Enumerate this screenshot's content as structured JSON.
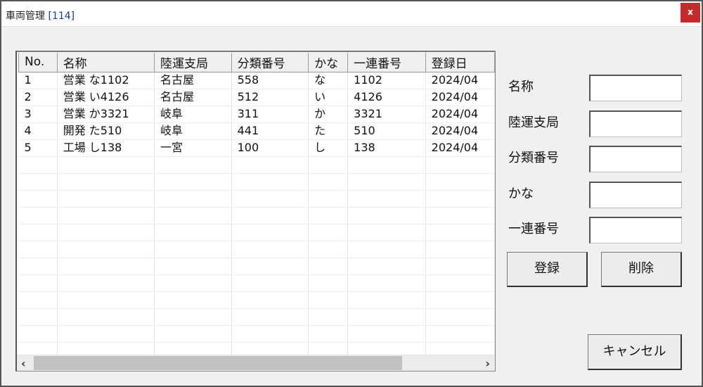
{
  "window": {
    "title": "車両管理",
    "title_suffix": "[114]",
    "close_label": "x"
  },
  "list": {
    "columns": [
      "No.",
      "名称",
      "陸運支局",
      "分類番号",
      "かな",
      "一連番号",
      "登録日"
    ],
    "rows": [
      [
        "1",
        "営業 な1102",
        "名古屋",
        "558",
        "な",
        "1102",
        "2024/04"
      ],
      [
        "2",
        "営業 い4126",
        "名古屋",
        "512",
        "い",
        "4126",
        "2024/04"
      ],
      [
        "3",
        "営業 か3321",
        "岐阜",
        "311",
        "か",
        "3321",
        "2024/04"
      ],
      [
        "4",
        "開発 た510",
        "岐阜",
        "441",
        "た",
        "510",
        "2024/04"
      ],
      [
        "5",
        "工場 し138",
        "一宮",
        "100",
        "し",
        "138",
        "2024/04"
      ]
    ],
    "scroll_left": "‹",
    "scroll_right": "›"
  },
  "form": {
    "fields": [
      {
        "label": "名称",
        "value": ""
      },
      {
        "label": "陸運支局",
        "value": ""
      },
      {
        "label": "分類番号",
        "value": ""
      },
      {
        "label": "かな",
        "value": ""
      },
      {
        "label": "一連番号",
        "value": ""
      }
    ],
    "register_label": "登録",
    "delete_label": "削除",
    "cancel_label": "キャンセル"
  }
}
